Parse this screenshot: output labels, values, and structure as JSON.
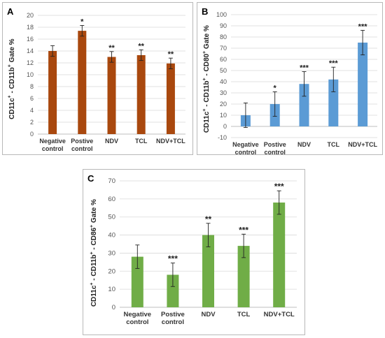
{
  "chart_data": [
    {
      "panel": "A",
      "type": "bar",
      "categories": [
        [
          "Negative",
          "control"
        ],
        [
          "Postive",
          "control"
        ],
        [
          "NDV"
        ],
        [
          "TCL"
        ],
        [
          "NDV+TCL"
        ]
      ],
      "values": [
        14.0,
        17.4,
        13.0,
        13.3,
        11.9
      ],
      "errors": [
        0.9,
        0.9,
        0.9,
        0.9,
        0.9
      ],
      "annotations": [
        "",
        "*",
        "**",
        "**",
        "**"
      ],
      "ylabel": {
        "p1": "CD11c",
        "s1": "+",
        "p2": " - CD11b",
        "s2": "+",
        "p3": " Gate %"
      },
      "ylim": [
        0,
        20
      ],
      "yticks": [
        0,
        2,
        4,
        6,
        8,
        10,
        12,
        14,
        16,
        18,
        20
      ],
      "color": "#a9480e",
      "grid": true
    },
    {
      "panel": "B",
      "type": "bar",
      "categories": [
        [
          "Negative",
          "control"
        ],
        [
          "Postive",
          "control"
        ],
        [
          "NDV"
        ],
        [
          "TCL"
        ],
        [
          "NDV+TCL"
        ]
      ],
      "values": [
        10,
        20,
        38,
        42,
        75
      ],
      "errors": [
        11,
        11,
        11,
        11,
        11
      ],
      "annotations": [
        "",
        "*",
        "***",
        "***",
        "***"
      ],
      "ylabel": {
        "p1": "CD11c",
        "s1": "+",
        "p2": " - CD11b",
        "s2": "+",
        "p3": " - CD80",
        "s3": "+",
        "p4": " Gate %"
      },
      "ylim": [
        -10,
        100
      ],
      "yticks": [
        -10,
        0,
        10,
        20,
        30,
        40,
        50,
        60,
        70,
        80,
        90,
        100
      ],
      "color": "#5b9bd5",
      "grid": true
    },
    {
      "panel": "C",
      "type": "bar",
      "categories": [
        [
          "Negative",
          "control"
        ],
        [
          "Postive",
          "control"
        ],
        [
          "NDV"
        ],
        [
          "TCL"
        ],
        [
          "NDV+TCL"
        ]
      ],
      "values": [
        28,
        18,
        40,
        34,
        58
      ],
      "errors": [
        6.5,
        6.5,
        6.5,
        6.5,
        6.5
      ],
      "annotations": [
        "",
        "***",
        "**",
        "***",
        "***"
      ],
      "ylabel": {
        "p1": "CD11c",
        "s1": "+",
        "p2": " - CD11b",
        "s2": "+",
        "p3": " - CD86",
        "s3": "+",
        "p4": " Gate %"
      },
      "ylim": [
        0,
        70
      ],
      "yticks": [
        0,
        10,
        20,
        30,
        40,
        50,
        60,
        70
      ],
      "color": "#70ad47",
      "grid": true
    }
  ]
}
